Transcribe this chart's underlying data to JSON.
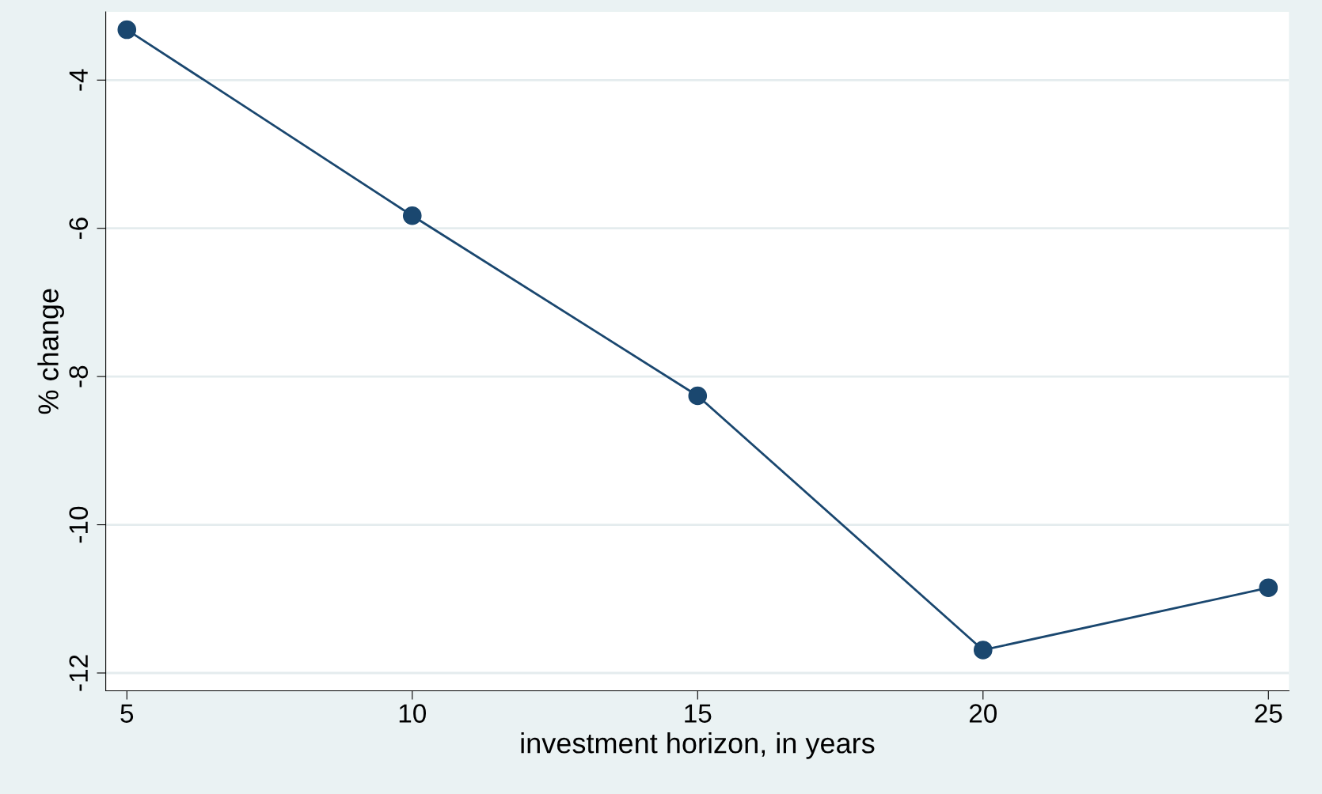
{
  "chart_data": {
    "type": "line",
    "xlabel": "investment horizon, in years",
    "ylabel": "% change",
    "x": [
      5,
      10,
      15,
      20,
      25
    ],
    "series": [
      {
        "color": "#1a476f",
        "values": [
          -3.32,
          -5.83,
          -8.26,
          -11.69,
          -10.85
        ]
      }
    ],
    "xlim": [
      4.63,
      25.36
    ],
    "xticks": [
      5,
      10,
      15,
      20,
      25
    ],
    "ylim": [
      -12.24,
      -3.08
    ],
    "yticks": [
      -12,
      -10,
      -8,
      -6,
      -4
    ],
    "grid": "y",
    "marker": "circle",
    "line_style": "solid",
    "legend": false
  }
}
